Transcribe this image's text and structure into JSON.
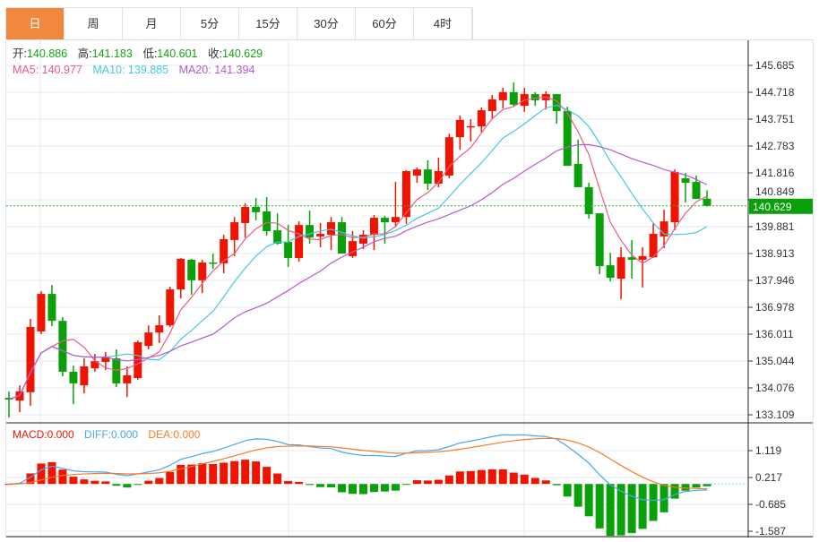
{
  "tabs": [
    {
      "label": "日",
      "active": true
    },
    {
      "label": "周"
    },
    {
      "label": "月"
    },
    {
      "label": "5分"
    },
    {
      "label": "15分"
    },
    {
      "label": "30分"
    },
    {
      "label": "60分"
    },
    {
      "label": "4时"
    }
  ],
  "ohlc_legend": {
    "open_label": "开:",
    "open": "140.886",
    "high_label": "高:",
    "high": "141.183",
    "low_label": "低:",
    "low": "140.601",
    "close_label": "收:",
    "close": "140.629"
  },
  "ma_legend": {
    "ma5": "MA5: 140.977",
    "ma10": "MA10: 139.885",
    "ma20": "MA20: 141.394"
  },
  "macd_legend": {
    "macd": "MACD:0.000",
    "diff": "DIFF:0.000",
    "dea": "DEA:0.000"
  },
  "last_price": "140.629",
  "colors": {
    "up": "#f01400",
    "down": "#0aa00a",
    "ma5": "#ec5a86",
    "ma10": "#46c8e2",
    "ma20": "#b35ad0",
    "diff": "#4aa6ee",
    "dea": "#f57c22",
    "tab_active": "#f0893d"
  },
  "chart_data": {
    "type": "candlestick",
    "price_ticks": [
      "145.685",
      "144.718",
      "143.751",
      "142.783",
      "141.816",
      "140.849",
      "139.881",
      "138.913",
      "137.946",
      "136.978",
      "136.011",
      "135.044",
      "134.076",
      "133.109"
    ],
    "ylim": [
      133.109,
      145.685
    ],
    "macd_ticks": [
      "1.119",
      "0.217",
      "-0.685",
      "-1.587"
    ],
    "macd_ylim": [
      -1.587,
      1.119
    ],
    "candles": [
      [
        133.72,
        133.95,
        133.01,
        133.66
      ],
      [
        133.62,
        134.17,
        133.2,
        133.95
      ],
      [
        133.92,
        136.56,
        133.43,
        136.27
      ],
      [
        136.11,
        137.56,
        136.01,
        137.46
      ],
      [
        137.46,
        137.78,
        136.3,
        136.49
      ],
      [
        136.49,
        136.62,
        134.49,
        134.66
      ],
      [
        134.66,
        134.88,
        133.49,
        134.24
      ],
      [
        134.17,
        135.14,
        133.88,
        134.85
      ],
      [
        134.78,
        135.3,
        134.66,
        135.04
      ],
      [
        135.01,
        135.37,
        134.72,
        135.2
      ],
      [
        135.14,
        135.46,
        134.11,
        134.24
      ],
      [
        134.24,
        134.85,
        133.75,
        134.53
      ],
      [
        134.43,
        135.78,
        134.37,
        135.72
      ],
      [
        135.59,
        136.33,
        135.46,
        136.07
      ],
      [
        136.07,
        136.69,
        135.69,
        136.33
      ],
      [
        136.33,
        137.72,
        136.27,
        137.62
      ],
      [
        137.62,
        138.75,
        137.3,
        138.72
      ],
      [
        138.69,
        138.72,
        137.43,
        137.95
      ],
      [
        137.95,
        138.69,
        137.49,
        138.59
      ],
      [
        138.59,
        138.91,
        138.36,
        138.56
      ],
      [
        138.56,
        139.59,
        138.2,
        139.43
      ],
      [
        139.4,
        140.23,
        138.82,
        140.04
      ],
      [
        140.01,
        140.72,
        139.49,
        140.59
      ],
      [
        140.59,
        140.91,
        140.11,
        140.4
      ],
      [
        140.43,
        140.94,
        139.56,
        139.72
      ],
      [
        139.75,
        140.36,
        139.23,
        139.27
      ],
      [
        139.33,
        139.94,
        138.43,
        138.75
      ],
      [
        138.75,
        140.07,
        138.62,
        139.94
      ],
      [
        139.94,
        140.46,
        139.27,
        139.49
      ],
      [
        139.53,
        140.01,
        139.14,
        139.62
      ],
      [
        139.59,
        140.23,
        139.04,
        140.04
      ],
      [
        140.04,
        140.23,
        138.91,
        138.91
      ],
      [
        138.82,
        139.72,
        138.75,
        139.36
      ],
      [
        139.27,
        139.75,
        139.07,
        139.59
      ],
      [
        139.59,
        140.3,
        139.04,
        140.2
      ],
      [
        140.2,
        140.27,
        139.27,
        140.04
      ],
      [
        140.04,
        141.49,
        139.88,
        140.23
      ],
      [
        140.23,
        141.91,
        139.98,
        141.88
      ],
      [
        141.72,
        142.01,
        141.46,
        141.94
      ],
      [
        141.94,
        142.27,
        141.2,
        141.43
      ],
      [
        141.43,
        142.36,
        141.3,
        141.88
      ],
      [
        141.72,
        143.23,
        141.62,
        143.1
      ],
      [
        143.1,
        143.88,
        142.65,
        143.72
      ],
      [
        143.47,
        143.75,
        142.94,
        143.5
      ],
      [
        143.49,
        144.17,
        143.27,
        144.07
      ],
      [
        144.04,
        144.62,
        143.75,
        144.46
      ],
      [
        144.43,
        144.88,
        144.14,
        144.72
      ],
      [
        144.72,
        145.07,
        144.23,
        144.27
      ],
      [
        144.23,
        144.88,
        144.01,
        144.65
      ],
      [
        144.65,
        144.72,
        144.23,
        144.43
      ],
      [
        144.43,
        144.75,
        144.1,
        144.65
      ],
      [
        144.65,
        144.65,
        143.59,
        144.04
      ],
      [
        144.04,
        144.2,
        142.07,
        142.07
      ],
      [
        142.14,
        143.01,
        141.3,
        141.3
      ],
      [
        141.3,
        141.46,
        140.17,
        140.33
      ],
      [
        140.36,
        140.36,
        138.17,
        138.46
      ],
      [
        138.49,
        138.94,
        137.91,
        138.04
      ],
      [
        138.01,
        139.14,
        137.27,
        138.78
      ],
      [
        138.78,
        139.4,
        138.01,
        138.69
      ],
      [
        138.69,
        139.14,
        137.69,
        138.82
      ],
      [
        138.78,
        140.01,
        138.75,
        139.62
      ],
      [
        139.53,
        140.49,
        139.11,
        140.07
      ],
      [
        140.04,
        141.94,
        139.75,
        141.85
      ],
      [
        141.62,
        141.81,
        140.75,
        141.46
      ],
      [
        141.49,
        141.72,
        140.88,
        140.88
      ],
      [
        140.886,
        141.183,
        140.601,
        140.629
      ]
    ]
  }
}
